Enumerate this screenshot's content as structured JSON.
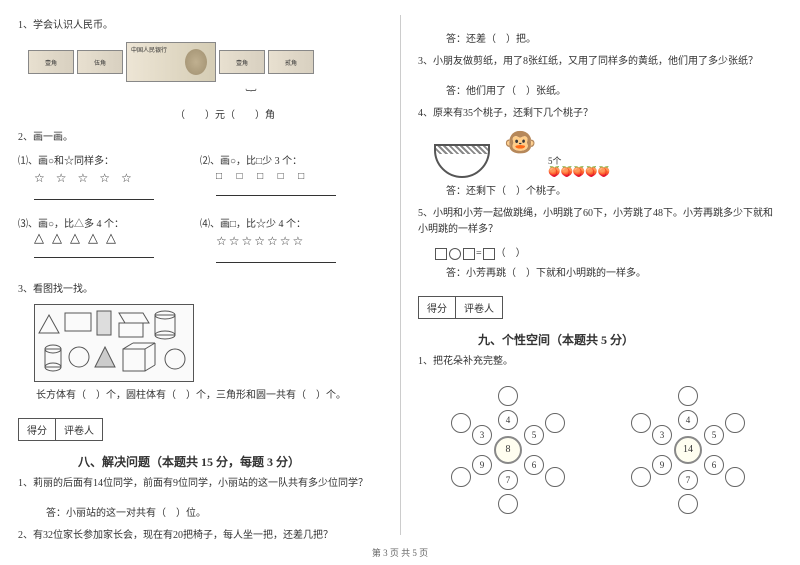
{
  "left": {
    "q1": "1、学会认识人民币。",
    "q1_fill": "（　　）元（　　）角",
    "q2": "2、画一画。",
    "q2_1": "⑴、画○和☆同样多：",
    "q2_2": "⑵、画○，比□少 3 个：",
    "q2_3": "⑶、画○，比△多 4 个：",
    "q2_4": "⑷、画□，比☆少 4 个：",
    "stars5": "☆ ☆ ☆ ☆ ☆",
    "squares5": "□ □ □ □ □",
    "stars7": "☆☆☆☆☆☆☆",
    "q3": "3、看图找一找。",
    "q3_text": "长方体有（　）个，圆柱体有（　）个，三角形和圆一共有（　）个。",
    "section8": "八、解决问题（本题共 15 分，每题 3 分）",
    "s8_1": "1、莉丽的后面有14位同学，前面有9位同学，小丽站的这一队共有多少位同学？",
    "s8_1a": "答：小丽站的这一对共有（　）位。",
    "s8_2": "2、有32位家长参加家长会，现在有20把椅子，每人坐一把，还差几把？",
    "score_label1": "得分",
    "score_label2": "评卷人"
  },
  "right": {
    "s8_2a": "答：还差（　）把。",
    "s8_3": "3、小朋友做剪纸，用了8张红纸，又用了同样多的黄纸，他们用了多少张纸？",
    "s8_3a": "答：他们用了（　）张纸。",
    "s8_4": "4、原来有35个桃子，还剩下几个桃子？",
    "s8_4_label": "5个",
    "s8_4a": "答：还剩下（　）个桃子。",
    "s8_5": "5、小明和小芳一起做跳绳，小明跳了60下，小芳跳了48下。小芳再跳多少下就和小明跳的一样多？",
    "s8_5a": "答：小芳再跳（　）下就和小明跳的一样多。",
    "section9": "九、个性空间（本题共 5 分）",
    "s9_1": "1、把花朵补充完整。",
    "flower1_center": "8",
    "flower2_center": "14",
    "flower_inner": [
      "4",
      "5",
      "6",
      "7",
      "9",
      "3"
    ],
    "score_label1": "得分",
    "score_label2": "评卷人"
  },
  "footer": "第 3 页 共 5 页"
}
